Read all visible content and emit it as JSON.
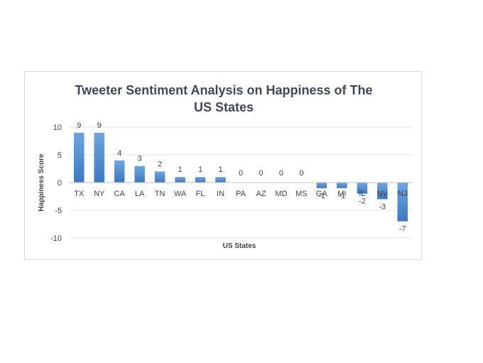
{
  "chart_data": {
    "type": "bar",
    "title": "Tweeter Sentiment  Analysis  on Happiness  of The\nUS States",
    "xlabel": "US States",
    "ylabel": "Happiness Score",
    "categories": [
      "TX",
      "NY",
      "CA",
      "LA",
      "TN",
      "WA",
      "FL",
      "IN",
      "PA",
      "AZ",
      "MD",
      "MS",
      "GA",
      "MI",
      "IL",
      "NV",
      "NJ"
    ],
    "values": [
      9,
      9,
      4,
      3,
      2,
      1,
      1,
      1,
      0,
      0,
      0,
      0,
      -1,
      -1,
      -2,
      -3,
      -7
    ],
    "ylim": [
      -10,
      10
    ],
    "yticks": [
      10,
      5,
      0,
      -5,
      -10
    ],
    "grid": true,
    "legend": "none",
    "bar_color_top": "#6ea6de",
    "bar_color_bottom": "#3b78c2",
    "grid_color": "#e0e0e0",
    "axis_color": "#bfbfbf",
    "title_color": "#404856"
  }
}
